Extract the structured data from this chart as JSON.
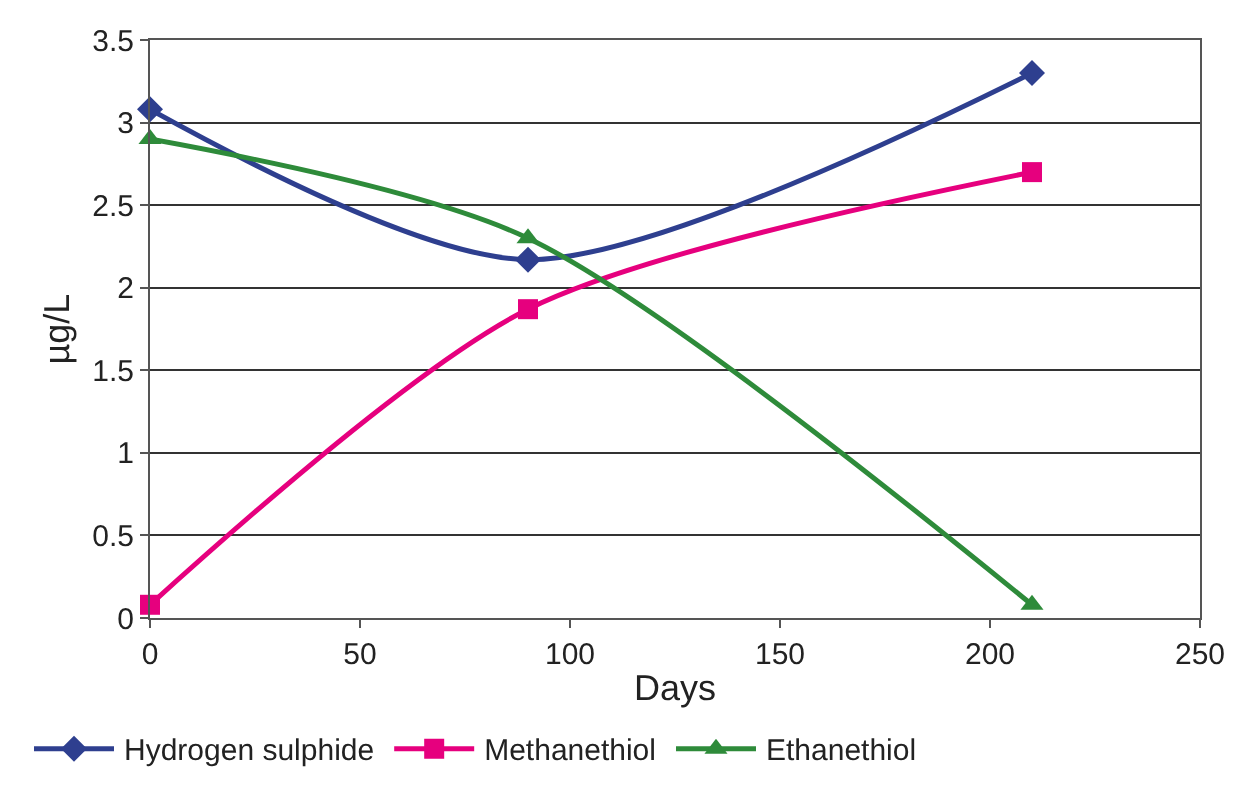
{
  "chart_data": {
    "type": "line",
    "xlabel": "Days",
    "ylabel": "µg/L",
    "xlim": [
      0,
      250
    ],
    "xticks": [
      0,
      50,
      100,
      150,
      200,
      250
    ],
    "ylim": [
      0,
      3.5
    ],
    "yticks": [
      0,
      0.5,
      1,
      1.5,
      2,
      2.5,
      3,
      3.5
    ],
    "x": [
      0,
      90,
      210
    ],
    "series": [
      {
        "name": "Hydrogen sulphide",
        "color": "#2e3f8f",
        "marker": "diamond",
        "values": [
          3.08,
          2.17,
          3.3
        ]
      },
      {
        "name": "Methanethiol",
        "color": "#e6007e",
        "marker": "square",
        "values": [
          0.08,
          1.87,
          2.7
        ]
      },
      {
        "name": "Ethanethiol",
        "color": "#2e8b3a",
        "marker": "triangle",
        "values": [
          2.9,
          2.3,
          0.08
        ]
      }
    ],
    "grid": "y",
    "legend": "bottom"
  }
}
